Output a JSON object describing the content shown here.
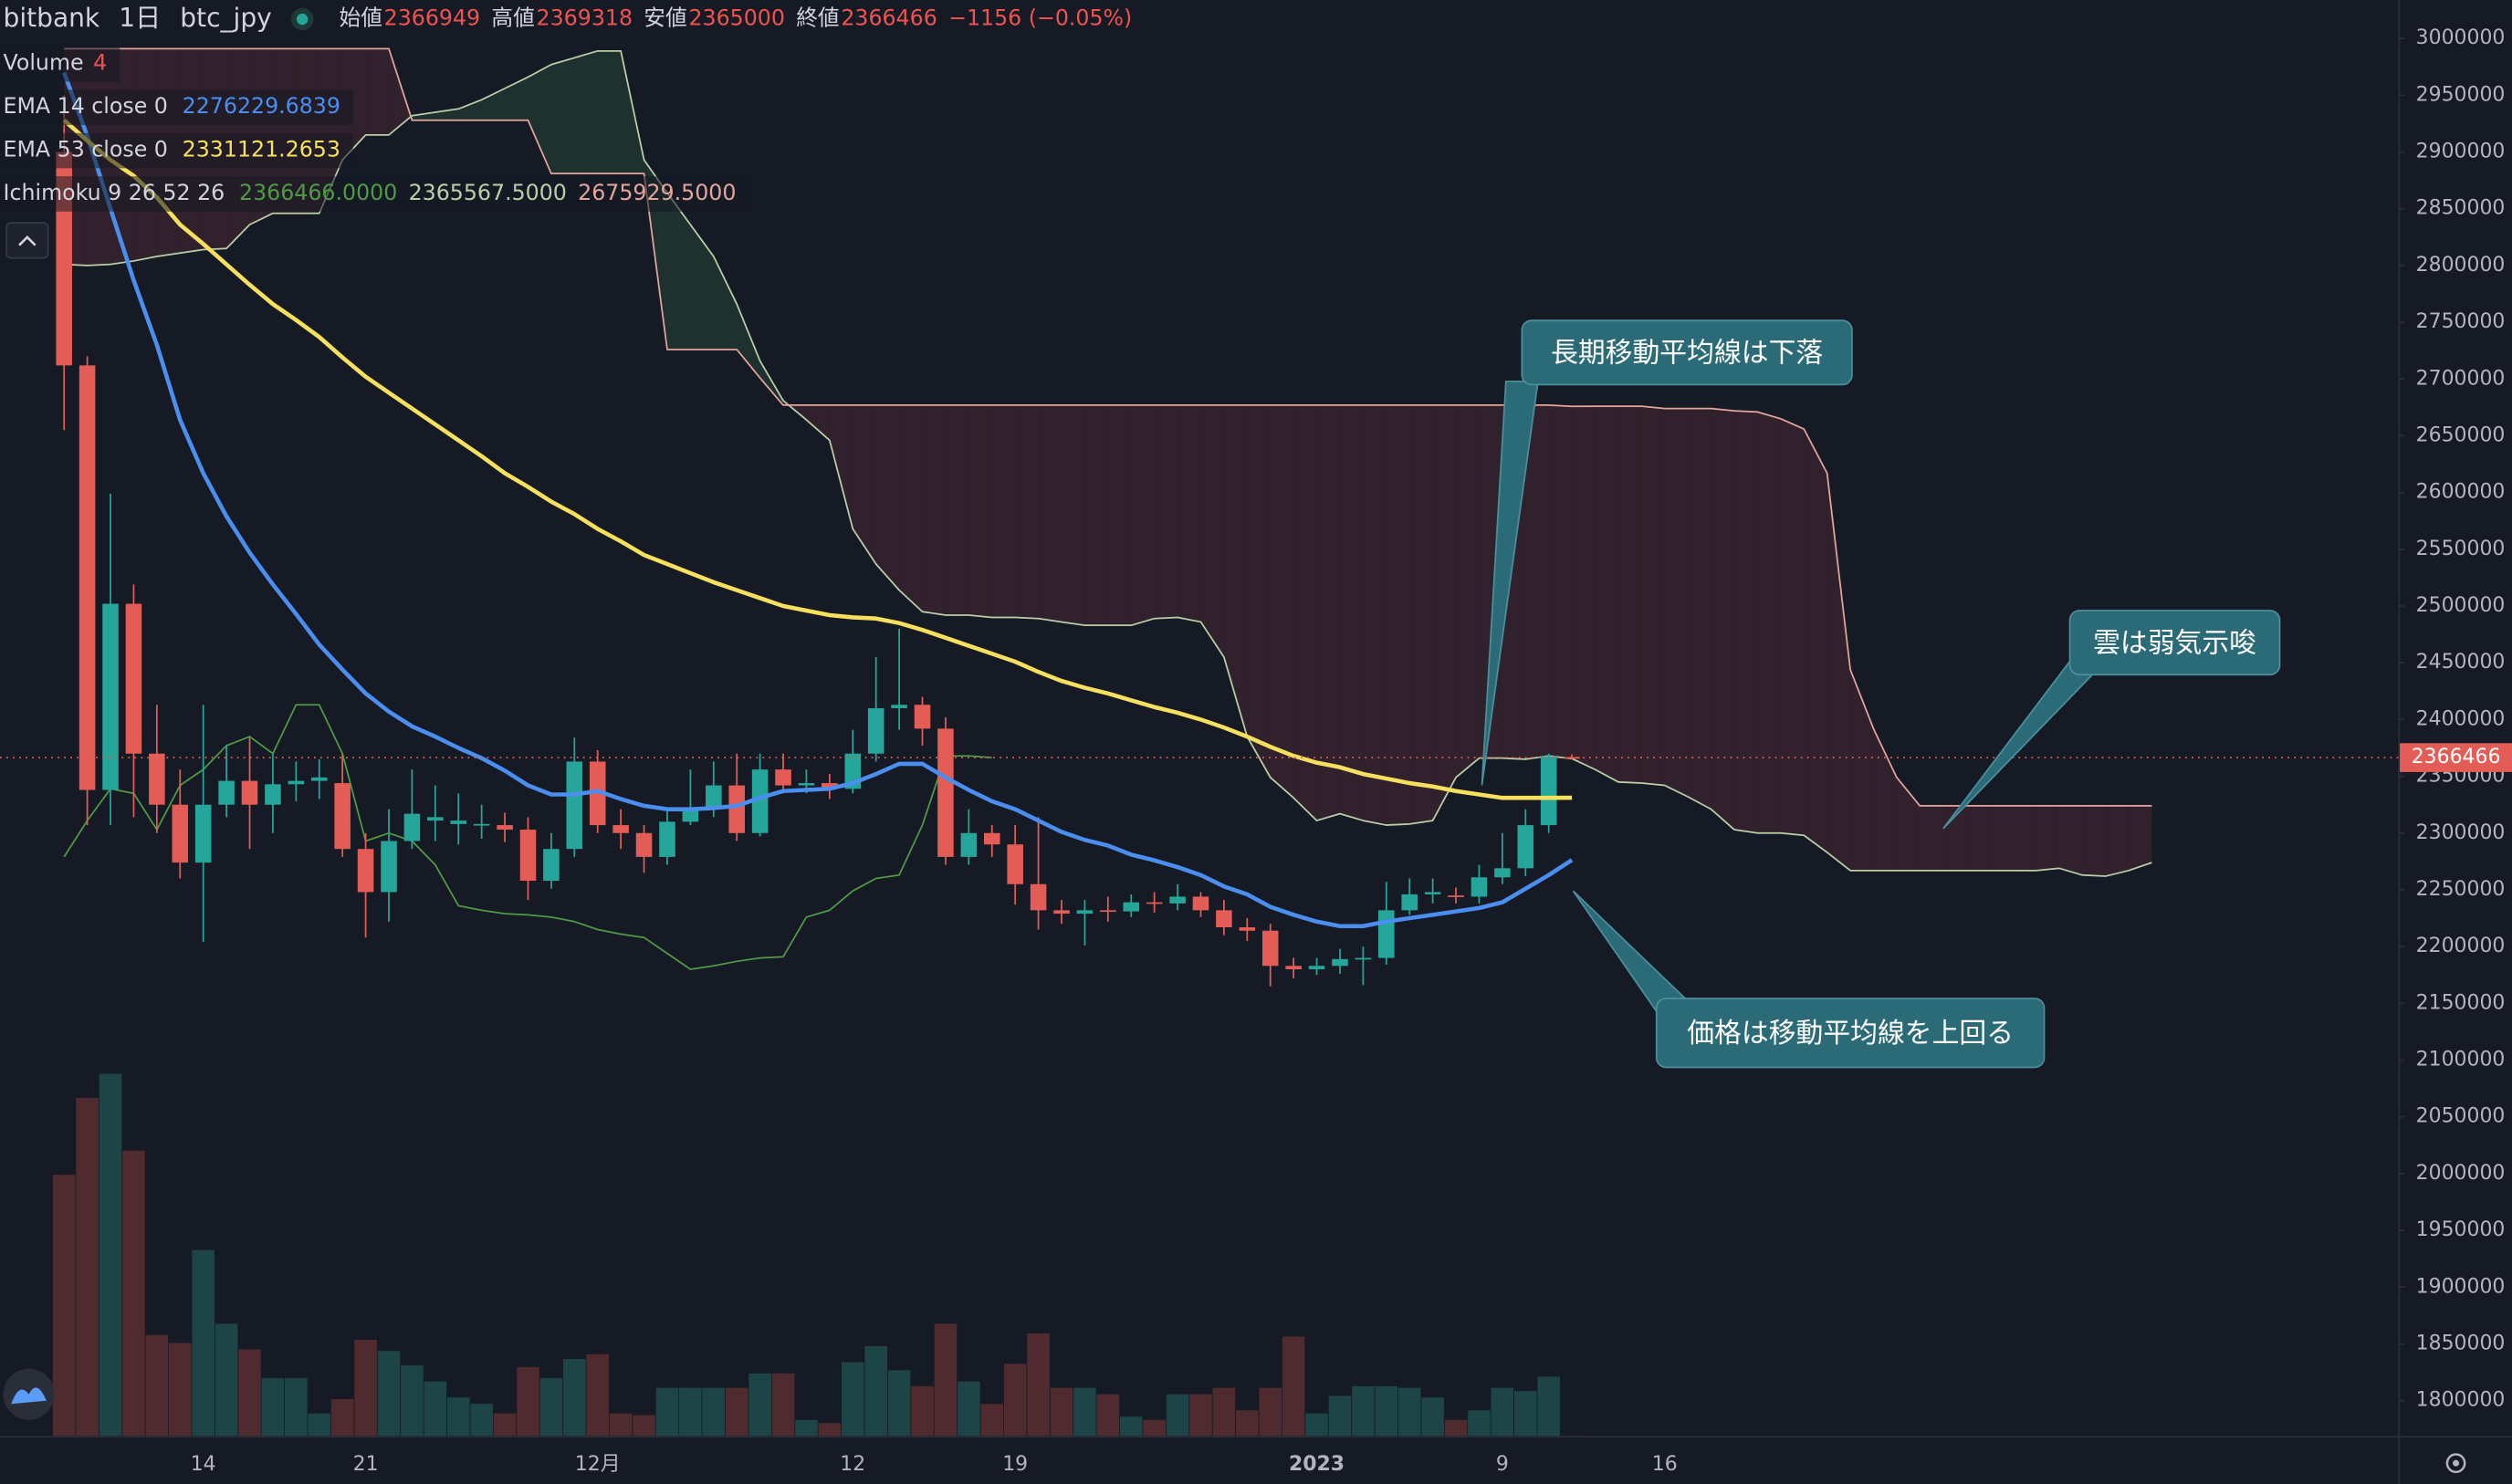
{
  "chart_data": {
    "type": "candlestick",
    "header": {
      "exchange": "bitbank",
      "interval": "1日",
      "symbol": "btc_jpy",
      "labels": {
        "open": "始値",
        "high": "高値",
        "low": "安値",
        "close": "終値"
      },
      "change": "−1156 (−0.05%)"
    },
    "categories": [
      null,
      null,
      null,
      null,
      null,
      null,
      "14",
      null,
      null,
      null,
      null,
      null,
      null,
      "21",
      null,
      null,
      null,
      null,
      null,
      null,
      null,
      null,
      null,
      "12月",
      null,
      null,
      null,
      null,
      null,
      null,
      null,
      null,
      null,
      null,
      "12",
      null,
      null,
      null,
      null,
      null,
      null,
      "19",
      null,
      null,
      null,
      null,
      null,
      null,
      null,
      null,
      null,
      null,
      null,
      null,
      "2023",
      null,
      null,
      null,
      null,
      null,
      null,
      null,
      "9",
      null,
      null,
      null,
      null,
      null,
      null,
      "16",
      null,
      null,
      null,
      null,
      null,
      null,
      null,
      null,
      null,
      null,
      null,
      null,
      null,
      null,
      null,
      null,
      null,
      null,
      null,
      null,
      null
    ],
    "candles": {
      "up_color": "#26a69a",
      "down_color": "#e35d56",
      "open": [
        2900000,
        2712000,
        2338000,
        2502000,
        2370000,
        2325000,
        2274000,
        2325000,
        2346000,
        2325000,
        2343000,
        2346000,
        2344000,
        2286000,
        2248000,
        2293000,
        2311000,
        2308000,
        2307000,
        2307000,
        2303000,
        2258000,
        2286000,
        2363000,
        2307000,
        2300000,
        2279000,
        2310000,
        2321000,
        2342000,
        2300000,
        2356000,
        2342000,
        2344000,
        2339000,
        2370000,
        2410000,
        2413000,
        2392000,
        2279000,
        2300000,
        2290000,
        2255000,
        2232000,
        2229000,
        2232000,
        2231000,
        2239000,
        2238000,
        2244000,
        2232000,
        2217000,
        2214000,
        2183000,
        2180000,
        2183000,
        2189000,
        2190000,
        2232000,
        2246000,
        2245000,
        2244000,
        2261000,
        2269000,
        2307000,
        2366949,
        null,
        null,
        null,
        null,
        null,
        null,
        null,
        null,
        null,
        null,
        null,
        null,
        null,
        null,
        null,
        null,
        null,
        null,
        null,
        null,
        null,
        null,
        null,
        null,
        null
      ],
      "high": [
        2950000,
        2720000,
        2599000,
        2519000,
        2413000,
        2356000,
        2413000,
        2377000,
        2384000,
        2370000,
        2363000,
        2365000,
        2370000,
        2300000,
        2321000,
        2356000,
        2342000,
        2335000,
        2325000,
        2318000,
        2314000,
        2300000,
        2384000,
        2373000,
        2321000,
        2307000,
        2321000,
        2356000,
        2363000,
        2370000,
        2370000,
        2370000,
        2356000,
        2352000,
        2391000,
        2455000,
        2480000,
        2420000,
        2402000,
        2321000,
        2307000,
        2307000,
        2314000,
        2241000,
        2241000,
        2244000,
        2246000,
        2248000,
        2255000,
        2248000,
        2241000,
        2225000,
        2220000,
        2190000,
        2190000,
        2198000,
        2200000,
        2257000,
        2260000,
        2260000,
        2252000,
        2272000,
        2300000,
        2321000,
        2370000,
        2369318,
        null,
        null,
        null,
        null,
        null,
        null,
        null,
        null,
        null,
        null,
        null,
        null,
        null,
        null,
        null,
        null,
        null,
        null,
        null,
        null,
        null,
        null,
        null,
        null,
        null
      ],
      "low": [
        2655000,
        2307000,
        2307000,
        2314000,
        2300000,
        2260000,
        2204000,
        2314000,
        2286000,
        2300000,
        2328000,
        2330000,
        2279000,
        2208000,
        2222000,
        2286000,
        2293000,
        2290000,
        2295000,
        2292000,
        2241000,
        2251000,
        2279000,
        2300000,
        2286000,
        2265000,
        2272000,
        2307000,
        2314000,
        2293000,
        2297000,
        2335000,
        2335000,
        2330000,
        2335000,
        2363000,
        2391000,
        2377000,
        2272000,
        2272000,
        2279000,
        2237000,
        2215000,
        2220000,
        2201000,
        2222000,
        2226000,
        2230000,
        2232000,
        2226000,
        2210000,
        2205000,
        2165000,
        2172000,
        2175000,
        2176000,
        2166000,
        2184000,
        2228000,
        2238000,
        2238000,
        2238000,
        2255000,
        2262000,
        2300000,
        2365000,
        null,
        null,
        null,
        null,
        null,
        null,
        null,
        null,
        null,
        null,
        null,
        null,
        null,
        null,
        null,
        null,
        null,
        null,
        null,
        null,
        null,
        null,
        null,
        null,
        null
      ],
      "close": [
        2712000,
        2338000,
        2502000,
        2370000,
        2325000,
        2274000,
        2325000,
        2346000,
        2325000,
        2343000,
        2346000,
        2349000,
        2286000,
        2248000,
        2293000,
        2317000,
        2314000,
        2311000,
        2308000,
        2303000,
        2258000,
        2286000,
        2363000,
        2307000,
        2300000,
        2279000,
        2310000,
        2321000,
        2342000,
        2300000,
        2356000,
        2342000,
        2344000,
        2339000,
        2370000,
        2410000,
        2413000,
        2392000,
        2279000,
        2300000,
        2290000,
        2255000,
        2232000,
        2229000,
        2232000,
        2231000,
        2239000,
        2238000,
        2244000,
        2232000,
        2217000,
        2214000,
        2183000,
        2180000,
        2183000,
        2189000,
        2190000,
        2232000,
        2246000,
        2248000,
        2244000,
        2261000,
        2269000,
        2307000,
        2367622,
        2366466,
        null,
        null,
        null,
        null,
        null,
        null,
        null,
        null,
        null,
        null,
        null,
        null,
        null,
        null,
        null,
        null,
        null,
        null,
        null,
        null,
        null,
        null,
        null,
        null,
        null
      ]
    },
    "volume": {
      "name": "Volume",
      "up_color": "#1d4547",
      "down_color": "#4f2a2e",
      "values": [
        6520,
        8440,
        9040,
        7120,
        2520,
        2320,
        4640,
        2800,
        2160,
        1440,
        1440,
        560,
        920,
        2400,
        2120,
        1760,
        1360,
        960,
        800,
        560,
        1720,
        1440,
        1920,
        2040,
        560,
        520,
        1200,
        1200,
        1200,
        1200,
        1560,
        1560,
        400,
        320,
        1840,
        2240,
        1640,
        1240,
        2800,
        1360,
        800,
        1800,
        2560,
        1200,
        1200,
        1040,
        480,
        400,
        1040,
        1040,
        1200,
        640,
        1200,
        2480,
        560,
        1000,
        1240,
        1240,
        1200,
        960,
        400,
        640,
        1200,
        1120,
        1480,
        4,
        null,
        null,
        null,
        null,
        null,
        null,
        null,
        null,
        null,
        null,
        null,
        null,
        null,
        null,
        null,
        null,
        null,
        null,
        null,
        null,
        null,
        null,
        null,
        null,
        null
      ]
    },
    "lines": [
      {
        "name": "EMA 14 close 0",
        "color": "#4a8ef0",
        "values": [
          2970000,
          2914000,
          2850000,
          2787000,
          2730000,
          2664000,
          2617000,
          2579000,
          2547000,
          2519000,
          2493000,
          2466000,
          2444000,
          2423000,
          2407000,
          2394000,
          2385000,
          2375000,
          2366000,
          2355000,
          2342000,
          2334000,
          2334000,
          2337000,
          2330000,
          2324000,
          2321000,
          2321000,
          2322000,
          2324000,
          2331000,
          2337000,
          2338000,
          2339000,
          2344000,
          2352000,
          2361000,
          2361000,
          2349000,
          2338000,
          2328000,
          2321000,
          2311000,
          2301000,
          2294000,
          2289000,
          2281000,
          2276000,
          2270000,
          2263000,
          2253000,
          2246000,
          2235000,
          2228000,
          2222000,
          2218000,
          2218000,
          2222000,
          2225000,
          2228000,
          2231000,
          2234000,
          2239000,
          2251000,
          2263000,
          2276229.6839,
          null,
          null,
          null,
          null,
          null,
          null,
          null,
          null,
          null,
          null,
          null,
          null,
          null,
          null,
          null,
          null,
          null,
          null,
          null,
          null,
          null,
          null,
          null,
          null,
          null
        ]
      },
      {
        "name": "EMA 53 close 0",
        "color": "#f6e05e",
        "values": [
          2928000,
          2910000,
          2893000,
          2879000,
          2860000,
          2836000,
          2819000,
          2801000,
          2783000,
          2766000,
          2752000,
          2737000,
          2719000,
          2702000,
          2688000,
          2674000,
          2660000,
          2646000,
          2632000,
          2617000,
          2605000,
          2592000,
          2581000,
          2568000,
          2557000,
          2545000,
          2537000,
          2529000,
          2521000,
          2514000,
          2507000,
          2500000,
          2496000,
          2492000,
          2490000,
          2489000,
          2485000,
          2479000,
          2472000,
          2465000,
          2458000,
          2451000,
          2442000,
          2434000,
          2428000,
          2423000,
          2417000,
          2411000,
          2406000,
          2400000,
          2393000,
          2385000,
          2376000,
          2368000,
          2362000,
          2358000,
          2352000,
          2348000,
          2344000,
          2341000,
          2337000,
          2334000,
          2331000,
          2331000,
          2331000,
          2331121.2653,
          null,
          null,
          null,
          null,
          null,
          null,
          null,
          null,
          null,
          null,
          null,
          null,
          null,
          null,
          null,
          null,
          null,
          null,
          null,
          null,
          null,
          null,
          null,
          null,
          null
        ]
      }
    ],
    "ichimoku": {
      "name": "Ichimoku 9 26 52 26",
      "cloud_up_color": "rgba(60,130,80,0.22)",
      "cloud_down_color": "rgba(110,50,60,0.32)",
      "lagging": {
        "color": "#4f9a45",
        "value_label": "2366466.0000",
        "values": [
          2279000,
          2311000,
          2339000,
          2335000,
          2303000,
          2342000,
          2356000,
          2377000,
          2385000,
          2370000,
          2413000,
          2413000,
          2370000,
          2293000,
          2300000,
          2293000,
          2272000,
          2236000,
          2232000,
          2229000,
          2228000,
          2226000,
          2222000,
          2215000,
          2211000,
          2208000,
          2194000,
          2180000,
          2183000,
          2187000,
          2190000,
          2191000,
          2226000,
          2232000,
          2249000,
          2260000,
          2263000,
          2307000,
          2368000,
          2368000,
          2366466,
          null,
          null,
          null,
          null,
          null,
          null,
          null,
          null,
          null,
          null,
          null,
          null,
          null,
          null,
          null,
          null,
          null,
          null,
          null,
          null,
          null,
          null,
          null,
          null,
          null,
          null,
          null,
          null,
          null,
          null,
          null,
          null,
          null,
          null,
          null,
          null,
          null,
          null,
          null,
          null,
          null,
          null,
          null,
          null,
          null,
          null,
          null,
          null,
          null,
          null
        ]
      },
      "span_a": {
        "color": "#b9cfa8",
        "value_label": "2365567.5000",
        "values": [
          2801000,
          2800000,
          2801000,
          2804000,
          2808000,
          2811000,
          2814000,
          2815000,
          2836000,
          2846000,
          2846000,
          2846000,
          2893000,
          2915000,
          2915000,
          2932000,
          2935000,
          2938000,
          2946000,
          2956000,
          2966000,
          2977000,
          2983000,
          2989000,
          2989000,
          2893000,
          2864000,
          2836000,
          2808000,
          2766000,
          2716000,
          2681000,
          2664000,
          2646000,
          2568000,
          2537000,
          2514000,
          2495000,
          2492000,
          2492000,
          2490000,
          2490000,
          2489000,
          2486000,
          2483000,
          2483000,
          2483000,
          2489000,
          2490000,
          2486000,
          2455000,
          2385000,
          2349000,
          2331000,
          2311000,
          2317000,
          2311000,
          2307000,
          2308000,
          2311000,
          2349000,
          2366000,
          2366000,
          2365000,
          2368000,
          2365567.5,
          2356000,
          2345000,
          2344000,
          2342000,
          2332000,
          2321000,
          2303000,
          2300000,
          2300000,
          2298000,
          2283000,
          2267000,
          2267000,
          2267000,
          2267000,
          2267000,
          2267000,
          2267000,
          2267000,
          2267000,
          2269000,
          2263000,
          2262000,
          2267000,
          2274000
        ]
      },
      "span_b": {
        "color": "#e3a59c",
        "value_label": "2675929.5000",
        "values": [
          2991000,
          2991000,
          2991000,
          2991000,
          2991000,
          2991000,
          2991000,
          2991000,
          2991000,
          2991000,
          2991000,
          2991000,
          2991000,
          2991000,
          2991000,
          2928000,
          2928000,
          2928000,
          2928000,
          2928000,
          2928000,
          2881000,
          2881000,
          2881000,
          2881000,
          2881000,
          2726000,
          2726000,
          2726000,
          2726000,
          2701000,
          2677000,
          2677000,
          2677000,
          2677000,
          2677000,
          2677000,
          2677000,
          2677000,
          2677000,
          2677000,
          2677000,
          2677000,
          2677000,
          2677000,
          2677000,
          2677000,
          2677000,
          2677000,
          2677000,
          2677000,
          2677000,
          2677000,
          2677000,
          2677000,
          2677000,
          2677000,
          2677000,
          2677000,
          2677000,
          2677000,
          2677000,
          2677000,
          2677000,
          2677000,
          2675929.5,
          2676000,
          2676000,
          2676000,
          2674000,
          2674000,
          2674000,
          2672000,
          2671000,
          2665000,
          2656000,
          2617000,
          2444000,
          2392000,
          2349000,
          2324000,
          2324000,
          2324000,
          2324000,
          2324000,
          2324000,
          2324000,
          2324000,
          2324000,
          2324000,
          2324000
        ]
      }
    },
    "annotations": [
      "長期移動平均線は下落",
      "雲は弱気示唆",
      "価格は移動平均線を上回る"
    ],
    "ylim": [
      1768900,
      3033900
    ],
    "yticks": [
      1800000,
      1850000,
      1900000,
      1950000,
      2000000,
      2050000,
      2100000,
      2150000,
      2200000,
      2250000,
      2300000,
      2350000,
      2400000,
      2450000,
      2500000,
      2550000,
      2600000,
      2650000,
      2700000,
      2750000,
      2800000,
      2850000,
      2900000,
      2950000,
      3000000
    ],
    "last_price_line": true,
    "grid": false
  }
}
